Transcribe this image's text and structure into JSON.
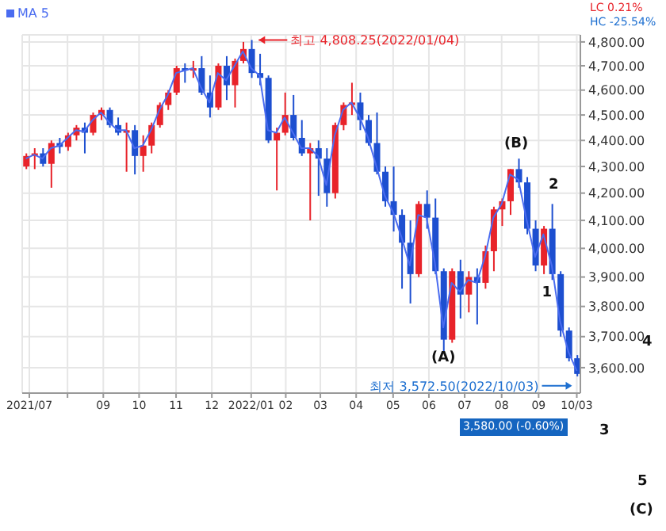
{
  "chart_data": {
    "type": "candlestick",
    "x": [
      "2021-06-28",
      "2021-07-05",
      "2021-07-12",
      "2021-07-19",
      "2021-07-26",
      "2021-08-02",
      "2021-08-09",
      "2021-08-16",
      "2021-08-23",
      "2021-08-30",
      "2021-09-06",
      "2021-09-13",
      "2021-09-20",
      "2021-09-27",
      "2021-10-04",
      "2021-10-11",
      "2021-10-18",
      "2021-10-25",
      "2021-11-01",
      "2021-11-08",
      "2021-11-15",
      "2021-11-22",
      "2021-11-29",
      "2021-12-06",
      "2021-12-13",
      "2021-12-20",
      "2021-12-27",
      "2022-01-03",
      "2022-01-10",
      "2022-01-17",
      "2022-01-24",
      "2022-01-31",
      "2022-02-07",
      "2022-02-14",
      "2022-02-21",
      "2022-02-28",
      "2022-03-07",
      "2022-03-14",
      "2022-03-21",
      "2022-03-28",
      "2022-04-04",
      "2022-04-11",
      "2022-04-18",
      "2022-04-25",
      "2022-05-02",
      "2022-05-09",
      "2022-05-16",
      "2022-05-23",
      "2022-05-30",
      "2022-06-06",
      "2022-06-13",
      "2022-06-20",
      "2022-06-27",
      "2022-07-04",
      "2022-07-11",
      "2022-07-18",
      "2022-07-25",
      "2022-08-01",
      "2022-08-08",
      "2022-08-15",
      "2022-08-22",
      "2022-08-29",
      "2022-09-05",
      "2022-09-12",
      "2022-09-19",
      "2022-09-26",
      "2022-10-03"
    ],
    "ohlc": [
      [
        4300,
        4350,
        4290,
        4340
      ],
      [
        4340,
        4370,
        4290,
        4350
      ],
      [
        4350,
        4370,
        4300,
        4310
      ],
      [
        4310,
        4400,
        4220,
        4390
      ],
      [
        4390,
        4410,
        4350,
        4375
      ],
      [
        4375,
        4430,
        4360,
        4420
      ],
      [
        4420,
        4460,
        4400,
        4450
      ],
      [
        4450,
        4470,
        4350,
        4430
      ],
      [
        4430,
        4510,
        4420,
        4500
      ],
      [
        4500,
        4530,
        4480,
        4520
      ],
      [
        4520,
        4530,
        4450,
        4460
      ],
      [
        4460,
        4490,
        4420,
        4430
      ],
      [
        4430,
        4470,
        4280,
        4440
      ],
      [
        4440,
        4460,
        4270,
        4340
      ],
      [
        4340,
        4420,
        4280,
        4380
      ],
      [
        4380,
        4470,
        4350,
        4460
      ],
      [
        4460,
        4550,
        4450,
        4540
      ],
      [
        4540,
        4600,
        4520,
        4590
      ],
      [
        4590,
        4700,
        4580,
        4690
      ],
      [
        4690,
        4710,
        4630,
        4680
      ],
      [
        4680,
        4720,
        4650,
        4690
      ],
      [
        4690,
        4740,
        4580,
        4590
      ],
      [
        4590,
        4660,
        4490,
        4530
      ],
      [
        4530,
        4710,
        4520,
        4700
      ],
      [
        4700,
        4740,
        4560,
        4620
      ],
      [
        4620,
        4730,
        4530,
        4720
      ],
      [
        4720,
        4800,
        4710,
        4770
      ],
      [
        4770,
        4808.25,
        4650,
        4670
      ],
      [
        4670,
        4750,
        4620,
        4650
      ],
      [
        4650,
        4660,
        4390,
        4400
      ],
      [
        4400,
        4450,
        4210,
        4430
      ],
      [
        4430,
        4590,
        4420,
        4500
      ],
      [
        4500,
        4580,
        4400,
        4410
      ],
      [
        4410,
        4480,
        4340,
        4350
      ],
      [
        4350,
        4390,
        4100,
        4370
      ],
      [
        4370,
        4400,
        4190,
        4330
      ],
      [
        4330,
        4370,
        4150,
        4200
      ],
      [
        4200,
        4470,
        4180,
        4460
      ],
      [
        4460,
        4550,
        4440,
        4540
      ],
      [
        4540,
        4630,
        4500,
        4550
      ],
      [
        4550,
        4590,
        4440,
        4480
      ],
      [
        4480,
        4500,
        4380,
        4390
      ],
      [
        4390,
        4510,
        4270,
        4280
      ],
      [
        4280,
        4300,
        4150,
        4170
      ],
      [
        4170,
        4300,
        4060,
        4120
      ],
      [
        4120,
        4140,
        3860,
        4020
      ],
      [
        4020,
        4100,
        3810,
        3910
      ],
      [
        3910,
        4170,
        3900,
        4160
      ],
      [
        4160,
        4210,
        4070,
        4110
      ],
      [
        4110,
        4180,
        3910,
        3920
      ],
      [
        3920,
        3930,
        3650,
        3690
      ],
      [
        3690,
        3930,
        3680,
        3920
      ],
      [
        3920,
        3960,
        3760,
        3840
      ],
      [
        3840,
        3920,
        3780,
        3900
      ],
      [
        3900,
        3930,
        3740,
        3880
      ],
      [
        3880,
        4010,
        3860,
        3990
      ],
      [
        3990,
        4150,
        3920,
        4140
      ],
      [
        4140,
        4180,
        4080,
        4170
      ],
      [
        4170,
        4290,
        4120,
        4290
      ],
      [
        4290,
        4330,
        4220,
        4240
      ],
      [
        4240,
        4260,
        4050,
        4070
      ],
      [
        4070,
        4100,
        3920,
        3940
      ],
      [
        3940,
        4080,
        3910,
        4070
      ],
      [
        4070,
        4160,
        3890,
        3910
      ],
      [
        3910,
        3920,
        3700,
        3720
      ],
      [
        3720,
        3730,
        3620,
        3630
      ],
      [
        3630,
        3640,
        3572.5,
        3580
      ]
    ],
    "colors": [
      "#e8232a",
      "#e8232a",
      "#1d4fd0",
      "#e8232a",
      "#1d4fd0",
      "#e8232a",
      "#e8232a",
      "#1d4fd0",
      "#e8232a",
      "#e8232a",
      "#1d4fd0",
      "#1d4fd0",
      "#e8232a",
      "#1d4fd0",
      "#e8232a",
      "#e8232a",
      "#e8232a",
      "#e8232a",
      "#e8232a",
      "#1d4fd0",
      "#e8232a",
      "#1d4fd0",
      "#1d4fd0",
      "#e8232a",
      "#1d4fd0",
      "#e8232a",
      "#e8232a",
      "#1d4fd0",
      "#1d4fd0",
      "#1d4fd0",
      "#e8232a",
      "#e8232a",
      "#1d4fd0",
      "#1d4fd0",
      "#e8232a",
      "#1d4fd0",
      "#1d4fd0",
      "#e8232a",
      "#e8232a",
      "#e8232a",
      "#1d4fd0",
      "#1d4fd0",
      "#1d4fd0",
      "#1d4fd0",
      "#1d4fd0",
      "#1d4fd0",
      "#1d4fd0",
      "#e8232a",
      "#1d4fd0",
      "#1d4fd0",
      "#1d4fd0",
      "#e8232a",
      "#1d4fd0",
      "#e8232a",
      "#1d4fd0",
      "#e8232a",
      "#e8232a",
      "#e8232a",
      "#e8232a",
      "#1d4fd0",
      "#1d4fd0",
      "#1d4fd0",
      "#e8232a",
      "#1d4fd0",
      "#1d4fd0",
      "#1d4fd0",
      "#1d4fd0"
    ],
    "series": [
      {
        "name": "MA 5",
        "type": "line",
        "color": "#4a6cf0",
        "values": [
          4330,
          4345,
          4330,
          4370,
          4380,
          4410,
          4440,
          4435,
          4480,
          4510,
          4470,
          4440,
          4440,
          4370,
          4380,
          4440,
          4520,
          4580,
          4670,
          4680,
          4690,
          4610,
          4550,
          4670,
          4640,
          4700,
          4760,
          4690,
          4660,
          4440,
          4430,
          4490,
          4430,
          4370,
          4370,
          4340,
          4230,
          4420,
          4520,
          4550,
          4490,
          4410,
          4300,
          4190,
          4130,
          4040,
          3940,
          4120,
          4110,
          3950,
          3730,
          3880,
          3850,
          3890,
          3880,
          3970,
          4110,
          4160,
          4270,
          4250,
          4100,
          3970,
          4050,
          3940,
          3750,
          3650,
          3590
        ]
      }
    ],
    "xlim": [
      "2021-06-25",
      "2022-10-06"
    ],
    "xticks": [
      {
        "value": "2021-07-01",
        "label": "2021/07"
      },
      {
        "value": "2021-08-02",
        "label": null
      },
      {
        "value": "2021-09-01",
        "label": "09"
      },
      {
        "value": "2021-10-01",
        "label": "10"
      },
      {
        "value": "2021-11-01",
        "label": "11"
      },
      {
        "value": "2021-12-01",
        "label": "12"
      },
      {
        "value": "2022-01-03",
        "label": "2022/01"
      },
      {
        "value": "2022-02-01",
        "label": "02"
      },
      {
        "value": "2022-03-02",
        "label": "03"
      },
      {
        "value": "2022-04-01",
        "label": "04"
      },
      {
        "value": "2022-05-02",
        "label": "05"
      },
      {
        "value": "2022-06-01",
        "label": "06"
      },
      {
        "value": "2022-07-01",
        "label": "07"
      },
      {
        "value": "2022-08-01",
        "label": "08"
      },
      {
        "value": "2022-09-01",
        "label": "09"
      },
      {
        "value": "2022-10-03",
        "label": "10/03"
      }
    ],
    "ylim": [
      3520,
      4830
    ],
    "yticks": [
      {
        "value": 3600,
        "label": "3,600.00"
      },
      {
        "value": 3700,
        "label": "3,700.00"
      },
      {
        "value": 3800,
        "label": "3,800.00"
      },
      {
        "value": 3900,
        "label": "3,900.00"
      },
      {
        "value": 4000,
        "label": "4,000.00"
      },
      {
        "value": 4100,
        "label": "4,100.00"
      },
      {
        "value": 4200,
        "label": "4,200.00"
      },
      {
        "value": 4300,
        "label": "4,300.00"
      },
      {
        "value": 4400,
        "label": "4,400.00"
      },
      {
        "value": 4500,
        "label": "4,500.00"
      },
      {
        "value": 4600,
        "label": "4,600.00"
      },
      {
        "value": 4700,
        "label": "4,700.00"
      },
      {
        "value": 4800,
        "label": "4,800.00"
      }
    ],
    "log": "y",
    "grid": true,
    "legend": "top left",
    "annotations": [
      {
        "text": "최고 4,808.25(2022/01/04)",
        "x": "2022-01-04",
        "y": 4808.25
      },
      {
        "text": "최저 3,572.50(2022/10/03)",
        "x": "2022-10-03",
        "y": 3572.5
      },
      {
        "text": "1",
        "x": "2022-09-08",
        "y": 3850
      },
      "(A)",
      "(B)",
      "2",
      "4",
      "3",
      "5",
      "(C)",
      "LC 0.21%",
      "HC -25.54%",
      "3,580.00 (-0.60%)"
    ]
  }
}
